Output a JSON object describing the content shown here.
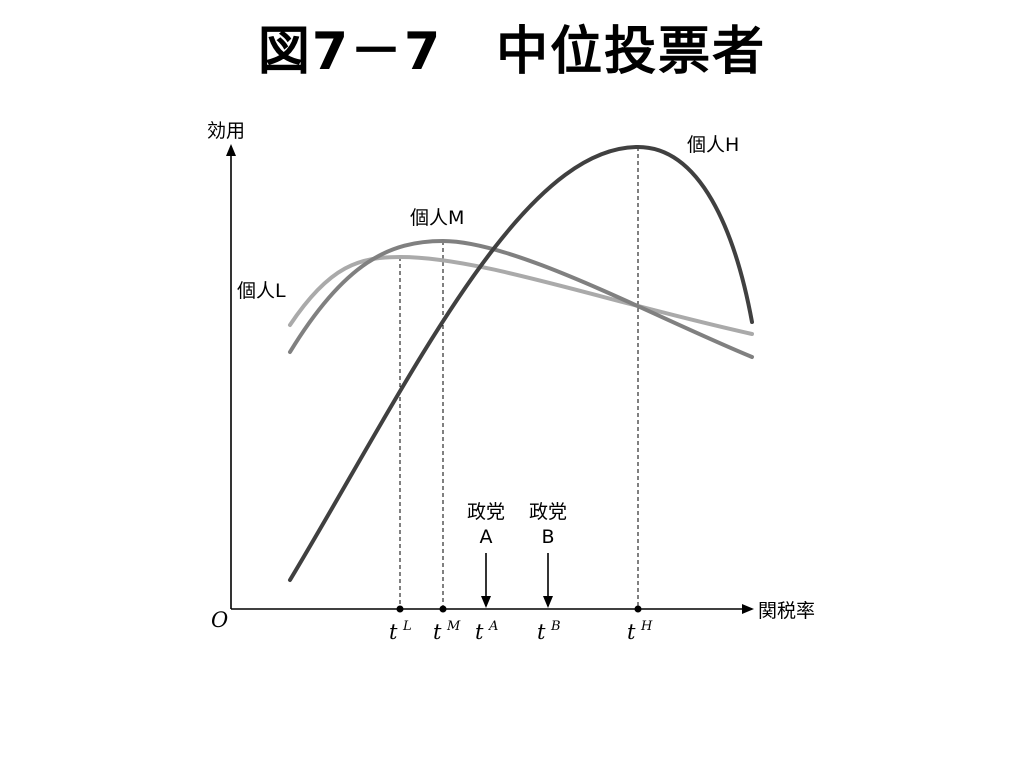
{
  "title": "図7－7　中位投票者",
  "axes": {
    "y_label": "効用",
    "x_label": "関税率",
    "origin": "O"
  },
  "curves": [
    {
      "label": "個人L",
      "color": "#aaaaaa"
    },
    {
      "label": "個人M",
      "color": "#808080"
    },
    {
      "label": "個人H",
      "color": "#404040"
    }
  ],
  "ticks": [
    {
      "base": "t",
      "sup": "L"
    },
    {
      "base": "t",
      "sup": "M"
    },
    {
      "base": "t",
      "sup": "A"
    },
    {
      "base": "t",
      "sup": "B"
    },
    {
      "base": "t",
      "sup": "H"
    }
  ],
  "parties": [
    {
      "line1": "政党",
      "line2": "A"
    },
    {
      "line1": "政党",
      "line2": "B"
    }
  ]
}
